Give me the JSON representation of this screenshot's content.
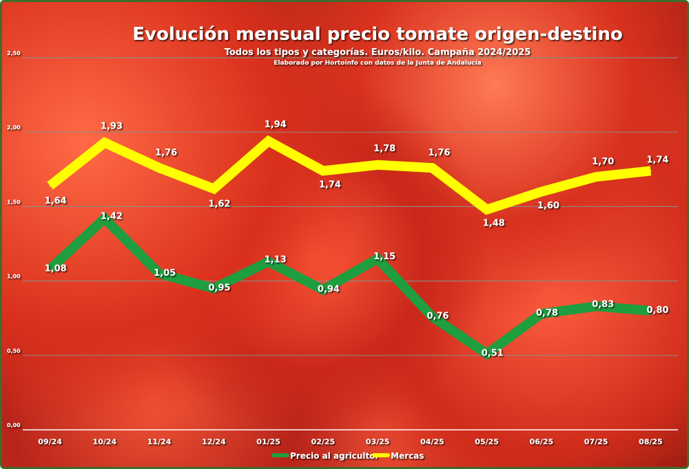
{
  "chart_data": {
    "type": "line",
    "title": "Evolución mensual precio tomate origen-destino",
    "subtitle": "Todos los tipos y categorías. Euros/kilo. Campaña 2024/2025",
    "source": "Elaborado por Hortoinfo con datos de la Junta de Andalucía",
    "categories": [
      "09/24",
      "10/24",
      "11/24",
      "12/24",
      "01/25",
      "02/25",
      "03/25",
      "04/25",
      "05/25",
      "06/25",
      "07/25",
      "08/25"
    ],
    "ylim": [
      0,
      2.5
    ],
    "yticks": [
      "0,00",
      "0,50",
      "1,00",
      "1,50",
      "2,00",
      "2,50"
    ],
    "grid": true,
    "legend_position": "bottom",
    "series": [
      {
        "name": "Precio al agricultor",
        "color": "#1e9e3e",
        "values": [
          1.08,
          1.42,
          1.05,
          0.95,
          1.13,
          0.94,
          1.15,
          0.76,
          0.51,
          0.78,
          0.83,
          0.8
        ],
        "labels": [
          "1,08",
          "1,42",
          "1,05",
          "0,95",
          "1,13",
          "0,94",
          "1,15",
          "0,76",
          "0,51",
          "0,78",
          "0,83",
          "0,80"
        ]
      },
      {
        "name": "Mercas",
        "color": "#ffff00",
        "values": [
          1.64,
          1.93,
          1.76,
          1.62,
          1.94,
          1.74,
          1.78,
          1.76,
          1.48,
          1.6,
          1.7,
          1.74
        ],
        "labels": [
          "1,64",
          "1,93",
          "1,76",
          "1,62",
          "1,94",
          "1,74",
          "1,78",
          "1,76",
          "1,48",
          "1,60",
          "1,70",
          "1,74"
        ]
      }
    ]
  }
}
